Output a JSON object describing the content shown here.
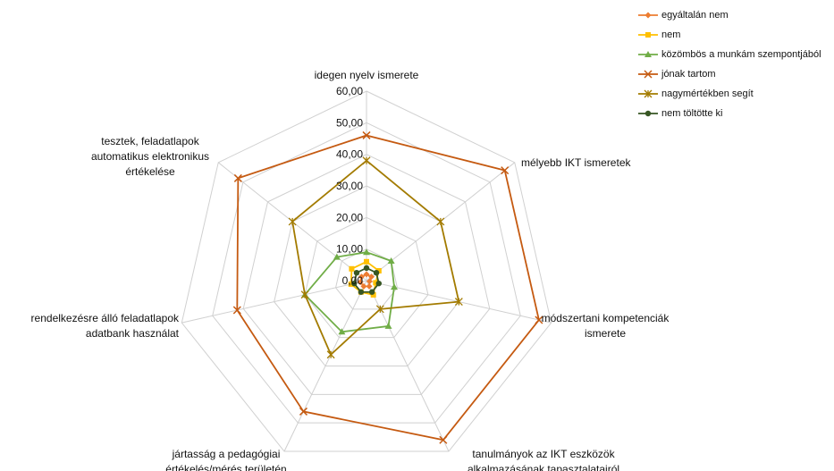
{
  "chart_data": {
    "type": "radar",
    "categories": [
      [
        "idegen nyelv ismerete"
      ],
      [
        "mélyebb IKT ismeretek"
      ],
      [
        "módszertani kompetenciák",
        "ismerete"
      ],
      [
        "tanulmányok az IKT eszközök",
        "alkalmazásának tapasztalatairól"
      ],
      [
        "jártasság a pedagógiai",
        "értékelés/mérés területén"
      ],
      [
        "rendelkezésre álló feladatlapok",
        "adatbank használat"
      ],
      [
        "tesztek, feladatlapok",
        "automatikus elektronikus",
        "értékelése"
      ]
    ],
    "ticks": [
      "0,00",
      "10,00",
      "20,00",
      "30,00",
      "40,00",
      "50,00",
      "60,00"
    ],
    "rmax": 60,
    "legend_position": "top-right",
    "series": [
      {
        "name": "egyáltalán nem",
        "color": "#ED7D31",
        "marker": "diamond",
        "values": [
          2,
          2,
          1,
          2,
          2,
          2,
          2
        ]
      },
      {
        "name": "nem",
        "color": "#FFC000",
        "marker": "square",
        "values": [
          6,
          5,
          3,
          5,
          4,
          5,
          6
        ]
      },
      {
        "name": "közömbös a munkám szempontjából",
        "color": "#70AD47",
        "marker": "triangle",
        "values": [
          9,
          10,
          9,
          16,
          18,
          20,
          12
        ]
      },
      {
        "name": "jónak tartom",
        "color": "#C55A11",
        "marker": "x",
        "values": [
          46,
          56,
          56,
          56,
          46,
          42,
          52
        ]
      },
      {
        "name": "nagymértékben segít",
        "color": "#A37B00",
        "marker": "star",
        "values": [
          38,
          30,
          30,
          10,
          26,
          20,
          30
        ]
      },
      {
        "name": "nem töltötte ki",
        "color": "#375623",
        "marker": "circle",
        "values": [
          4,
          4,
          4,
          4,
          4,
          4,
          4
        ]
      }
    ]
  }
}
